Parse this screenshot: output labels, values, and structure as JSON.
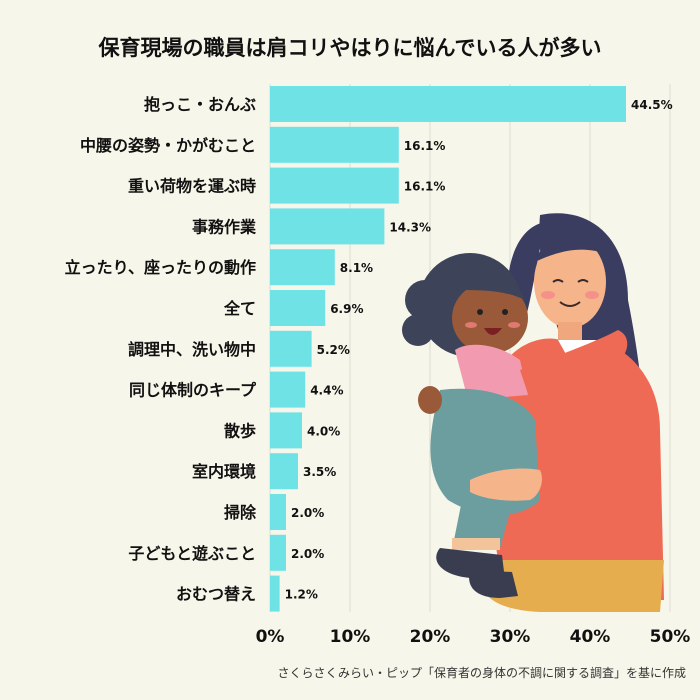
{
  "title": "保育現場の職員は肩コリやはりに悩んでいる人が多い",
  "credit": "さくらさくみらい・ピップ「保育者の身体の不調に関する調査」を基に作成",
  "chart_data": {
    "type": "bar",
    "orientation": "horizontal",
    "categories": [
      "抱っこ・おんぶ",
      "中腰の姿勢・かがむこと",
      "重い荷物を運ぶ時",
      "事務作業",
      "立ったり、座ったりの動作",
      "全て",
      "調理中、洗い物中",
      "同じ体制のキープ",
      "散歩",
      "室内環境",
      "掃除",
      "子どもと遊ぶこと",
      "おむつ替え"
    ],
    "values": [
      44.5,
      16.1,
      16.1,
      14.3,
      8.1,
      6.9,
      5.2,
      4.4,
      4.0,
      3.5,
      2.0,
      2.0,
      1.2
    ],
    "value_labels": [
      "44.5%",
      "16.1%",
      "16.1%",
      "14.3%",
      "8.1%",
      "6.9%",
      "5.2%",
      "4.4%",
      "4.0%",
      "3.5%",
      "2.0%",
      "2.0%",
      "1.2%"
    ],
    "xlim": [
      0,
      50
    ],
    "x_ticks": [
      "0%",
      "10%",
      "20%",
      "30%",
      "40%",
      "50%"
    ],
    "grid": true,
    "bar_color": "#6fe2e6",
    "grid_color": "#dcdcd2"
  }
}
